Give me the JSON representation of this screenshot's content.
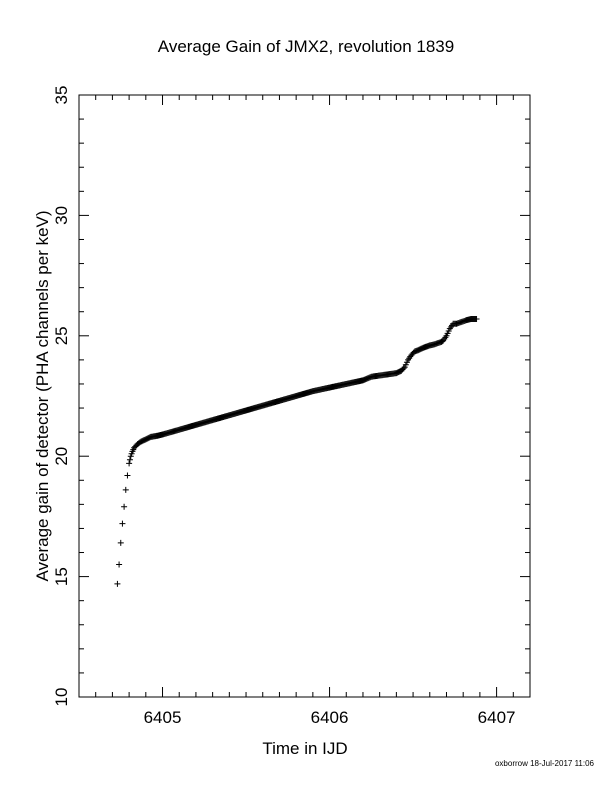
{
  "footer": "oxborrow 18-Jul-2017 11:06",
  "chart_data": {
    "type": "scatter",
    "marker": "plus",
    "title": "Average Gain of JMX2, revolution 1839",
    "xlabel": "Time in IJD",
    "ylabel": "Average gain of detector (PHA channels per keV)",
    "xlim": [
      6404.5,
      6407.2
    ],
    "ylim": [
      10,
      35
    ],
    "xticks": [
      6405,
      6406,
      6407
    ],
    "xtick_labels": [
      "6405",
      "6406",
      "6407"
    ],
    "yticks": [
      10,
      15,
      20,
      25,
      30,
      35
    ],
    "ytick_labels": [
      "10",
      "15",
      "20",
      "25",
      "30",
      "35"
    ],
    "x_minor_step": 0.1,
    "y_minor_step": 1,
    "grid": false,
    "series": [
      {
        "color": "#000000",
        "x": [
          6404.73,
          6404.74,
          6404.75,
          6404.76,
          6404.77,
          6404.78,
          6404.79,
          6404.8,
          6404.81,
          6404.82,
          6404.83,
          6404.85,
          6404.87,
          6404.9,
          6404.93,
          6404.97,
          6405.0,
          6405.05,
          6405.1,
          6405.2,
          6405.3,
          6405.4,
          6405.5,
          6405.6,
          6405.7,
          6405.8,
          6405.9,
          6406.0,
          6406.1,
          6406.2,
          6406.25,
          6406.3,
          6406.35,
          6406.4,
          6406.43,
          6406.45,
          6406.47,
          6406.49,
          6406.51,
          6406.53,
          6406.56,
          6406.6,
          6406.63,
          6406.65,
          6406.67,
          6406.68,
          6406.7,
          6406.72,
          6406.74,
          6406.76,
          6406.78,
          6406.8,
          6406.82,
          6406.85,
          6406.88
        ],
        "y": [
          14.7,
          15.5,
          16.4,
          17.2,
          17.9,
          18.6,
          19.2,
          19.7,
          20.0,
          20.2,
          20.35,
          20.5,
          20.6,
          20.7,
          20.8,
          20.85,
          20.9,
          21.0,
          21.1,
          21.3,
          21.5,
          21.7,
          21.9,
          22.1,
          22.3,
          22.5,
          22.7,
          22.85,
          23.0,
          23.15,
          23.3,
          23.35,
          23.4,
          23.45,
          23.55,
          23.7,
          24.0,
          24.2,
          24.35,
          24.4,
          24.5,
          24.6,
          24.65,
          24.7,
          24.75,
          24.8,
          25.0,
          25.3,
          25.5,
          25.5,
          25.55,
          25.6,
          25.65,
          25.7,
          25.7
        ]
      }
    ]
  }
}
